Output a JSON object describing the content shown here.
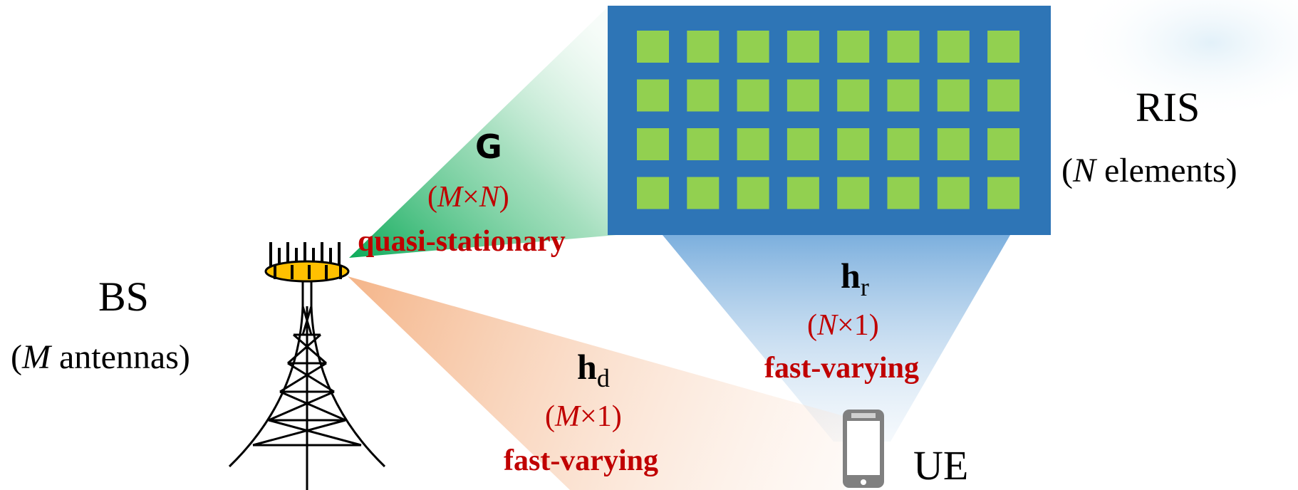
{
  "colors": {
    "ris_panel": "#2e75b6",
    "ris_element": "#92d050",
    "beam_bs_ris": "#00a651",
    "beam_ris_ue": "#5b9bd5",
    "beam_bs_ue": "#f4b183",
    "label_red": "#c00000",
    "antenna_ring": "#ffc000"
  },
  "ris": {
    "name": "RIS",
    "sub_prefix": "(",
    "sub_var": "N",
    "sub_suffix": " elements)",
    "rows": 4,
    "cols": 8
  },
  "bs": {
    "name": "BS",
    "sub_prefix": "(",
    "sub_var": "M",
    "sub_suffix": " antennas)"
  },
  "ue": {
    "name": "UE",
    "icon": "smartphone-icon"
  },
  "channel_G": {
    "symbol": "G",
    "dim_a": "M",
    "dim_x": "×",
    "dim_b": "N",
    "property": "quasi-stationary"
  },
  "channel_hr": {
    "symbol": "h",
    "subscript": "r",
    "dim_a": "N",
    "dim_x": "×",
    "dim_b": "1",
    "property": "fast-varying"
  },
  "channel_hd": {
    "symbol": "h",
    "subscript": "d",
    "dim_a": "M",
    "dim_x": "×",
    "dim_b": "1",
    "property": "fast-varying"
  },
  "icons": [
    "tower-icon",
    "antenna-array-icon",
    "smartphone-icon"
  ]
}
